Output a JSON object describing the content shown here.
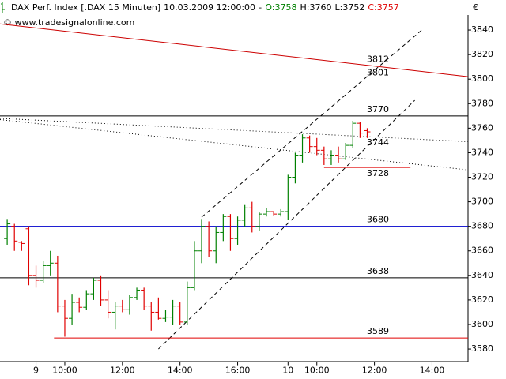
{
  "chart_data": {
    "type": "ohlc",
    "title": "DAX Perf. Index [.DAX  15 Minuten]",
    "datetime": "10.03.2009 12:00:00",
    "separator": "-",
    "header_values": [
      {
        "label": "O:",
        "value": 3758,
        "color": "#008000"
      },
      {
        "label": "H:",
        "value": 3760,
        "color": "#000000"
      },
      {
        "label": "L:",
        "value": 3752,
        "color": "#000000"
      },
      {
        "label": "C:",
        "value": 3757,
        "color": "#e00000"
      }
    ],
    "watermark": "© www.tradesignalonline.com",
    "currency": "€",
    "up_color": "#008000",
    "down_color": "#e00000",
    "x": [
      -4,
      -3,
      -2,
      -1,
      0,
      1,
      2,
      3,
      4,
      5,
      6,
      7,
      8,
      9,
      10,
      11,
      12,
      13,
      14,
      15,
      16,
      17,
      18,
      19,
      20,
      21,
      22,
      23,
      24,
      25,
      26,
      27,
      28,
      29,
      30,
      31,
      32,
      33,
      34,
      35,
      36,
      37,
      38,
      39,
      40,
      41,
      42,
      43,
      44,
      45,
      46
    ],
    "open": [
      3670,
      3680,
      3667,
      3678,
      3640,
      3636,
      3648,
      3650,
      3615,
      3605,
      3618,
      3614,
      3625,
      3636,
      3620,
      3610,
      3615,
      3612,
      3622,
      3628,
      3615,
      3610,
      3605,
      3606,
      3615,
      3602,
      3630,
      3660,
      3680,
      3660,
      3675,
      3688,
      3670,
      3685,
      3695,
      3680,
      3690,
      3692,
      3690,
      3692,
      3720,
      3738,
      3752,
      3745,
      3742,
      3735,
      3738,
      3735,
      3746,
      3764,
      3758
    ],
    "high": [
      3686,
      3682,
      3668,
      3680,
      3648,
      3652,
      3660,
      3656,
      3620,
      3625,
      3622,
      3628,
      3638,
      3640,
      3628,
      3618,
      3620,
      3624,
      3630,
      3630,
      3618,
      3622,
      3612,
      3620,
      3618,
      3635,
      3668,
      3686,
      3684,
      3680,
      3690,
      3690,
      3688,
      3698,
      3700,
      3692,
      3695,
      3692,
      3694,
      3722,
      3740,
      3755,
      3754,
      3752,
      3745,
      3742,
      3745,
      3748,
      3766,
      3765,
      3760
    ],
    "low": [
      3665,
      3660,
      3660,
      3632,
      3630,
      3634,
      3640,
      3610,
      3590,
      3600,
      3610,
      3612,
      3620,
      3615,
      3605,
      3596,
      3610,
      3608,
      3620,
      3612,
      3595,
      3604,
      3602,
      3600,
      3600,
      3600,
      3628,
      3650,
      3655,
      3650,
      3668,
      3660,
      3665,
      3680,
      3675,
      3676,
      3688,
      3689,
      3688,
      3685,
      3715,
      3732,
      3740,
      3738,
      3730,
      3730,
      3732,
      3734,
      3744,
      3752,
      3752
    ],
    "close": [
      3682,
      3668,
      3666,
      3640,
      3636,
      3648,
      3650,
      3615,
      3605,
      3618,
      3614,
      3625,
      3636,
      3620,
      3610,
      3615,
      3612,
      3622,
      3628,
      3615,
      3610,
      3605,
      3606,
      3615,
      3602,
      3630,
      3660,
      3680,
      3660,
      3675,
      3688,
      3670,
      3685,
      3695,
      3680,
      3690,
      3692,
      3690,
      3692,
      3720,
      3738,
      3752,
      3745,
      3742,
      3735,
      3738,
      3735,
      3746,
      3764,
      3756,
      3757
    ],
    "xlim": [
      -5,
      60
    ],
    "xticks": [
      {
        "value": 0,
        "label": "9"
      },
      {
        "value": 4,
        "label": "10:00"
      },
      {
        "value": 12,
        "label": "12:00"
      },
      {
        "value": 20,
        "label": "14:00"
      },
      {
        "value": 28,
        "label": "16:00"
      },
      {
        "value": 35,
        "label": "10"
      },
      {
        "value": 39,
        "label": "10:00"
      },
      {
        "value": 47,
        "label": "12:00"
      },
      {
        "value": 55,
        "label": "14:00"
      }
    ],
    "ylim": [
      3570,
      3852
    ],
    "yticks": [
      3580,
      3600,
      3620,
      3640,
      3660,
      3680,
      3700,
      3720,
      3740,
      3760,
      3780,
      3800,
      3820,
      3840
    ],
    "levels": [
      {
        "value": 3770,
        "color": "#000000",
        "xrange": [
          -5,
          60
        ]
      },
      {
        "value": 3728,
        "color": "#e00000",
        "xrange": [
          40,
          52
        ]
      },
      {
        "value": 3680,
        "color": "#0000cc",
        "xrange": [
          -5,
          60
        ]
      },
      {
        "value": 3638,
        "color": "#000000",
        "xrange": [
          -5,
          60
        ]
      },
      {
        "value": 3589,
        "color": "#e00000",
        "xrange": [
          2.5,
          60
        ]
      }
    ],
    "notes": [
      {
        "value": 3812,
        "color": "#e00000"
      },
      {
        "value": 3801,
        "color": "#000000"
      },
      {
        "value": 3744,
        "color": "#000000"
      }
    ],
    "trendlines": [
      {
        "x": [
          -5,
          60
        ],
        "y": [
          3845,
          3802
        ],
        "color": "#cc0000",
        "style": "solid"
      },
      {
        "x": [
          -5,
          60
        ],
        "y": [
          3768,
          3749
        ],
        "color": "#000000",
        "style": "dotted"
      },
      {
        "x": [
          -5,
          60
        ],
        "y": [
          3767,
          3726
        ],
        "color": "#000000",
        "style": "dotted"
      },
      {
        "x": [
          23,
          53.7
        ],
        "y": [
          3687.5,
          3840.6
        ],
        "color": "#000000",
        "style": "dashed"
      },
      {
        "x": [
          17,
          52.6
        ],
        "y": [
          3580,
          3782.7
        ],
        "color": "#000000",
        "style": "dashed"
      }
    ]
  }
}
